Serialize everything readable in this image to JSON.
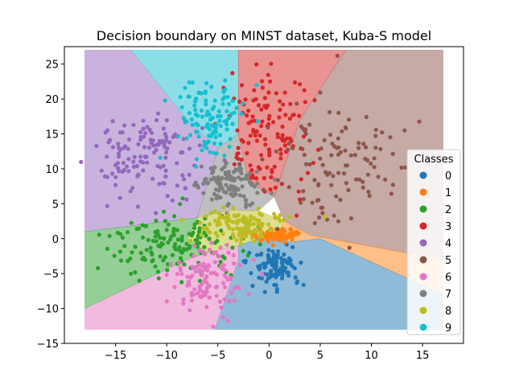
{
  "chart_data": {
    "type": "scatter",
    "title": "Decision boundary on MINST dataset, Kuba-S model",
    "xlabel": "",
    "ylabel": "",
    "xlim": [
      -20,
      19
    ],
    "ylim": [
      -15,
      27.5
    ],
    "xticks": [
      -15,
      -10,
      -5,
      0,
      5,
      10,
      15
    ],
    "yticks": [
      -15,
      -10,
      -5,
      0,
      5,
      10,
      15,
      20,
      25
    ],
    "grid": false,
    "legend": {
      "title": "Classes",
      "placement": "right"
    },
    "colors": {
      "0": "#1f77b4",
      "1": "#ff7f0e",
      "2": "#2ca02c",
      "3": "#d62728",
      "4": "#9467bd",
      "5": "#8c564b",
      "6": "#e377c2",
      "7": "#7f7f7f",
      "8": "#bcbd22",
      "9": "#17becf"
    },
    "decision_regions": [
      {
        "class": "4",
        "polygon": [
          [
            -18,
            27
          ],
          [
            -13.5,
            27
          ],
          [
            -8,
            17
          ],
          [
            -5,
            13
          ],
          [
            -7,
            3
          ],
          [
            -18,
            1
          ]
        ]
      },
      {
        "class": "9",
        "polygon": [
          [
            -13.5,
            27
          ],
          [
            -3,
            27
          ],
          [
            -3,
            15
          ],
          [
            -5,
            13
          ],
          [
            -8,
            17
          ]
        ]
      },
      {
        "class": "3",
        "polygon": [
          [
            -3,
            27
          ],
          [
            7.5,
            27
          ],
          [
            3,
            17
          ],
          [
            0.5,
            6
          ],
          [
            -2,
            8
          ],
          [
            -3,
            15
          ]
        ]
      },
      {
        "class": "5",
        "polygon": [
          [
            7.5,
            27
          ],
          [
            17,
            27
          ],
          [
            17,
            -3
          ],
          [
            4,
            0.5
          ],
          [
            1.5,
            2.5
          ],
          [
            0.5,
            6
          ],
          [
            3,
            17
          ]
        ]
      },
      {
        "class": "7",
        "polygon": [
          [
            -5,
            13
          ],
          [
            -3,
            15
          ],
          [
            -2,
            8
          ],
          [
            0.5,
            6
          ],
          [
            -1,
            4
          ],
          [
            -4,
            4
          ],
          [
            -7,
            3
          ]
        ]
      },
      {
        "class": "8",
        "polygon": [
          [
            -7,
            3
          ],
          [
            -4,
            4
          ],
          [
            -1,
            4
          ],
          [
            1.5,
            2.5
          ],
          [
            1,
            1
          ],
          [
            -1,
            0
          ],
          [
            -3,
            -1
          ],
          [
            -6,
            -2
          ],
          [
            -8,
            0
          ]
        ]
      },
      {
        "class": "1",
        "polygon": [
          [
            1.5,
            2.5
          ],
          [
            4,
            0.5
          ],
          [
            17,
            -3
          ],
          [
            17,
            -8
          ],
          [
            5,
            0
          ],
          [
            2,
            -0.5
          ],
          [
            1,
            1
          ]
        ]
      },
      {
        "class": "0",
        "polygon": [
          [
            -3,
            -1
          ],
          [
            -1,
            0
          ],
          [
            1,
            1
          ],
          [
            2,
            -0.5
          ],
          [
            5,
            0
          ],
          [
            17,
            -8
          ],
          [
            17,
            -13
          ],
          [
            -5.3,
            -13
          ],
          [
            -3,
            -3
          ]
        ]
      },
      {
        "class": "6",
        "polygon": [
          [
            -18,
            -13
          ],
          [
            -5.3,
            -13
          ],
          [
            -3,
            -3
          ],
          [
            -3,
            -1
          ],
          [
            -6,
            -2
          ],
          [
            -8,
            -3
          ],
          [
            -18,
            -10
          ]
        ]
      },
      {
        "class": "2",
        "polygon": [
          [
            -18,
            1
          ],
          [
            -7,
            3
          ],
          [
            -8,
            0
          ],
          [
            -6,
            -2
          ],
          [
            -8,
            -3
          ],
          [
            -18,
            -10
          ]
        ]
      }
    ],
    "clusters": [
      {
        "class": "0",
        "cx": 0.5,
        "cy": -4,
        "sx": 1.2,
        "sy": 1.4,
        "n": 110,
        "seed": 11
      },
      {
        "class": "1",
        "cx": 0.5,
        "cy": 0.5,
        "sx": 1.0,
        "sy": 0.5,
        "n": 90,
        "seed": 12
      },
      {
        "class": "2",
        "cx": -9,
        "cy": -1,
        "sx": 3,
        "sy": 2.2,
        "n": 150,
        "seed": 13
      },
      {
        "class": "3",
        "cx": 0,
        "cy": 15,
        "sx": 2,
        "sy": 5,
        "n": 130,
        "seed": 14
      },
      {
        "class": "4",
        "cx": -12,
        "cy": 12,
        "sx": 2.5,
        "sy": 3,
        "n": 130,
        "seed": 15
      },
      {
        "class": "5",
        "cx": 7,
        "cy": 11,
        "sx": 3.5,
        "sy": 4,
        "n": 110,
        "seed": 16
      },
      {
        "class": "6",
        "cx": -6,
        "cy": -6,
        "sx": 2,
        "sy": 2.5,
        "n": 110,
        "seed": 17
      },
      {
        "class": "7",
        "cx": -4,
        "cy": 8,
        "sx": 1.5,
        "sy": 1.8,
        "n": 110,
        "seed": 18
      },
      {
        "class": "8",
        "cx": -3,
        "cy": 2,
        "sx": 2.2,
        "sy": 1.2,
        "n": 120,
        "seed": 19
      },
      {
        "class": "9",
        "cx": -6,
        "cy": 17,
        "sx": 1.6,
        "sy": 3,
        "n": 110,
        "seed": 20
      }
    ]
  }
}
